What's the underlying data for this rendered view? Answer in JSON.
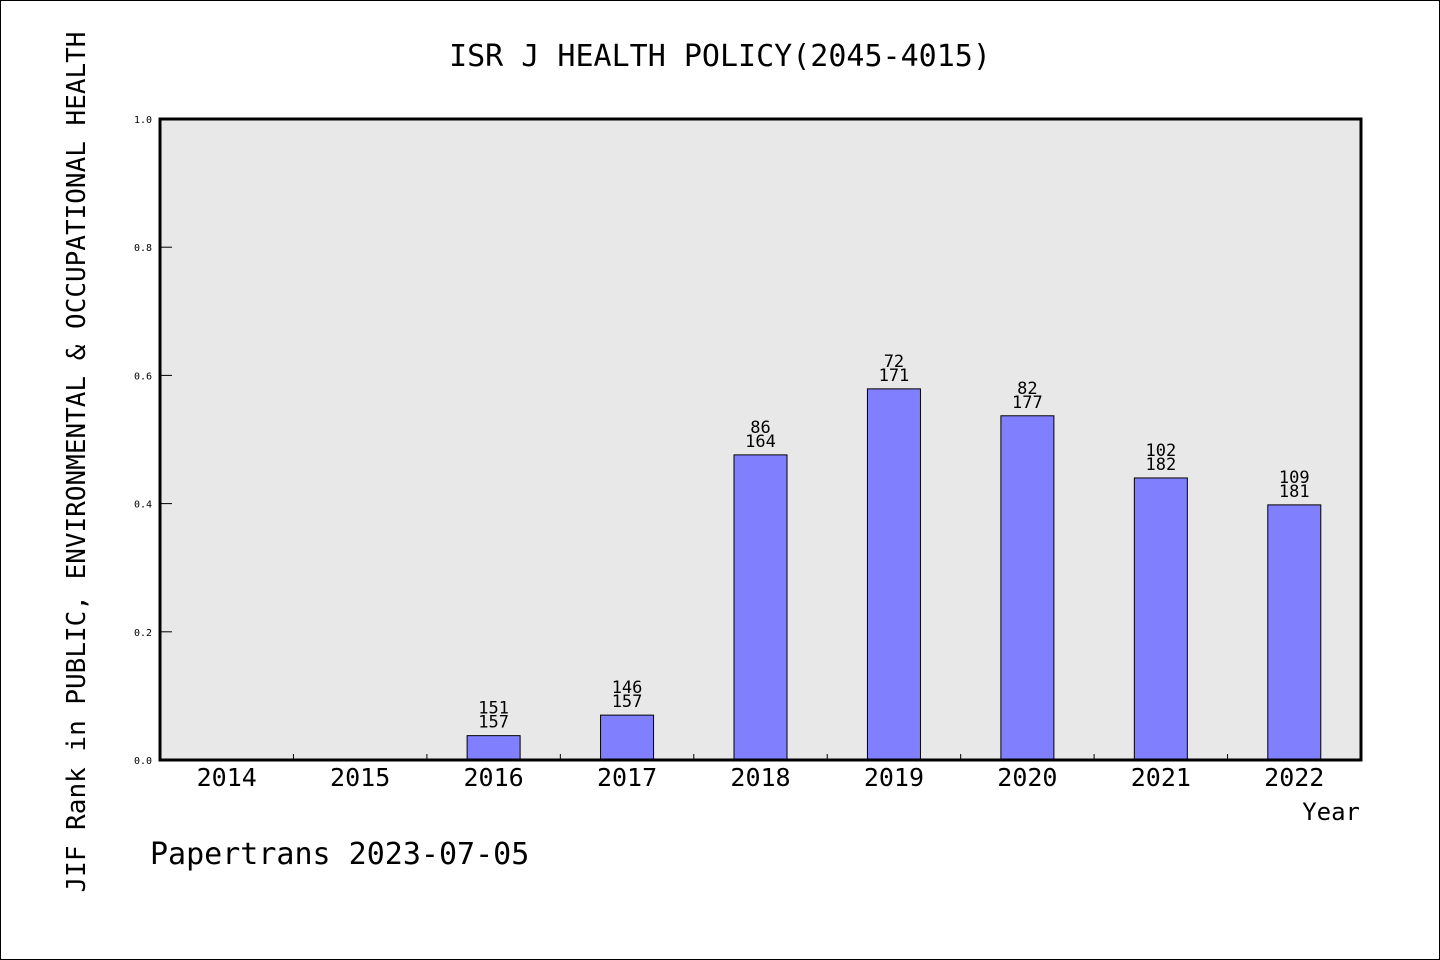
{
  "chart_data": {
    "type": "bar",
    "title": "ISR J HEALTH POLICY(2045-4015)",
    "ylabel": "JIF Rank in PUBLIC, ENVIRONMENTAL & OCCUPATIONAL HEALTH",
    "xlabel": "Year",
    "ylim": [
      0,
      1.0
    ],
    "yticks": [
      "0.0",
      "0.2",
      "0.4",
      "0.6",
      "0.8",
      "1.0"
    ],
    "categories": [
      "2014",
      "2015",
      "2016",
      "2017",
      "2018",
      "2019",
      "2020",
      "2021",
      "2022"
    ],
    "values": [
      null,
      null,
      0.038,
      0.07,
      0.476,
      0.579,
      0.537,
      0.44,
      0.398
    ],
    "rank": [
      null,
      null,
      "151",
      "146",
      "86",
      "72",
      "82",
      "102",
      "109"
    ],
    "total": [
      null,
      null,
      "157",
      "157",
      "164",
      "171",
      "177",
      "182",
      "181"
    ],
    "grid": false,
    "legend": "none",
    "bar_color": "#8080ff",
    "plot_background": "#e8e8e8"
  },
  "footer": "Papertrans 2023-07-05"
}
